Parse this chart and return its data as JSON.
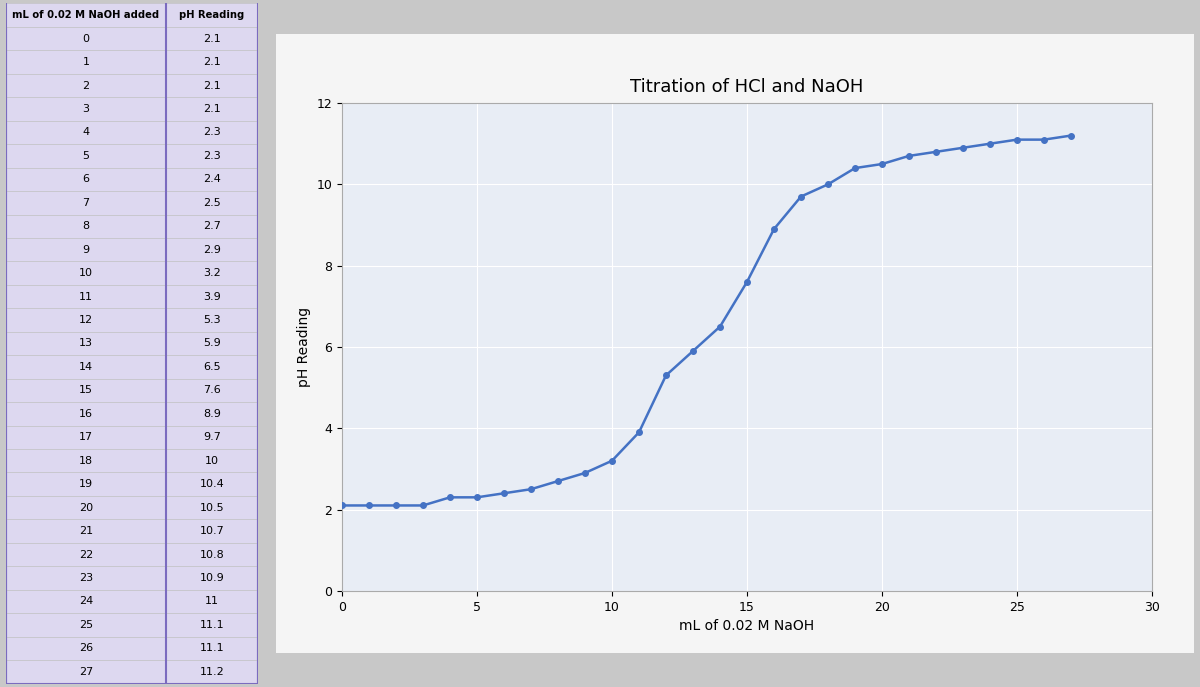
{
  "x": [
    0,
    1,
    2,
    3,
    4,
    5,
    6,
    7,
    8,
    9,
    10,
    11,
    12,
    13,
    14,
    15,
    16,
    17,
    18,
    19,
    20,
    21,
    22,
    23,
    24,
    25,
    26,
    27
  ],
  "y": [
    2.1,
    2.1,
    2.1,
    2.1,
    2.3,
    2.3,
    2.4,
    2.5,
    2.7,
    2.9,
    3.2,
    3.9,
    5.3,
    5.9,
    6.5,
    7.6,
    8.9,
    9.7,
    10.0,
    10.4,
    10.5,
    10.7,
    10.8,
    10.9,
    11.0,
    11.1,
    11.1,
    11.2
  ],
  "title": "Titration of HCl and NaOH",
  "xlabel": "mL of 0.02 M NaOH",
  "ylabel": "pH Reading",
  "xlim": [
    0,
    30
  ],
  "ylim": [
    0,
    12
  ],
  "xticks": [
    0,
    5,
    10,
    15,
    20,
    25,
    30
  ],
  "yticks": [
    0,
    2,
    4,
    6,
    8,
    10,
    12
  ],
  "line_color": "#4472C4",
  "marker_color": "#4472C4",
  "marker": "o",
  "marker_size": 4,
  "line_width": 1.8,
  "plot_bg_color": "#E8EDF5",
  "grid_color": "#FFFFFF",
  "title_fontsize": 13,
  "axis_label_fontsize": 10,
  "tick_fontsize": 9,
  "figure_bg_color": "#C8C8C8",
  "table_bg_color": "#DDD8F0",
  "table_header_bg": "#DDD8F0",
  "table_col1_header": "mL of 0.02 M NaOH added",
  "table_col2_header": "pH Reading",
  "table_border_color": "#7B6BBF",
  "cell_line_color": "#C0C0C0",
  "table_text_color": "#000000",
  "chart_border_color": "#AAAAAA",
  "chart_bg_color": "#F5F5F5"
}
